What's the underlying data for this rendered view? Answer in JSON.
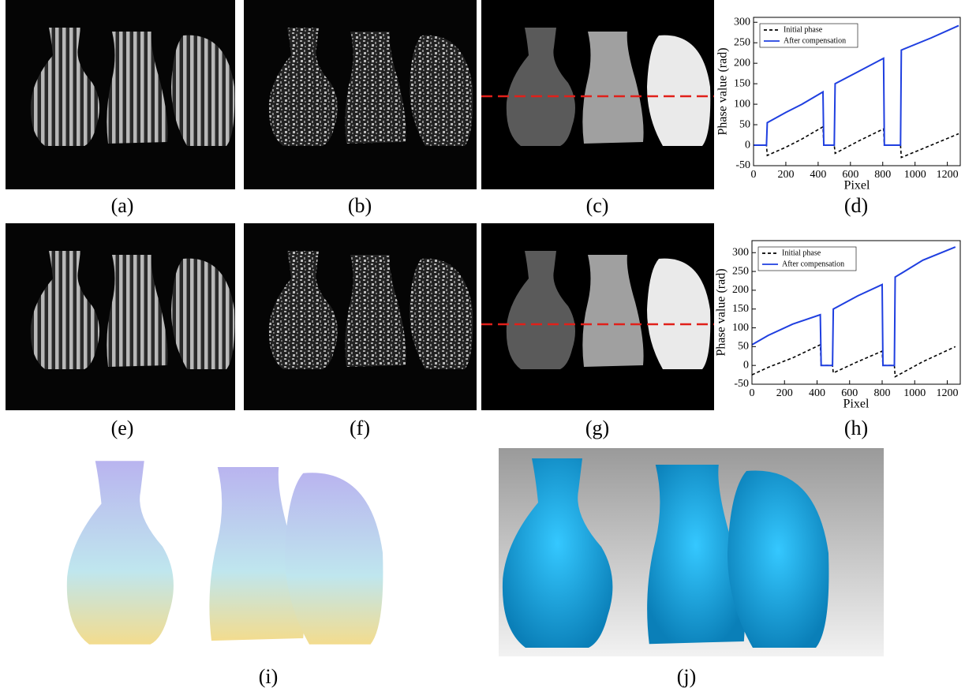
{
  "panel_labels": [
    "(a)",
    "(b)",
    "(c)",
    "(d)",
    "(e)",
    "(f)",
    "(g)",
    "(h)",
    "(i)",
    "(j)"
  ],
  "chart_data": [
    {
      "type": "line",
      "xlabel": "Pixel",
      "ylabel": "Phase value (rad)",
      "x": [
        0,
        80,
        85,
        200,
        300,
        430,
        435,
        500,
        505,
        650,
        805,
        810,
        910,
        915,
        1100,
        1270
      ],
      "series": [
        {
          "name": "Initial phase",
          "color": "#000000",
          "dash": true,
          "values": [
            0,
            0,
            -25,
            -5,
            15,
            45,
            0,
            0,
            -20,
            10,
            40,
            0,
            0,
            -30,
            0,
            28
          ]
        },
        {
          "name": "After compensation",
          "color": "#1f3fe0",
          "dash": false,
          "values": [
            0,
            0,
            55,
            80,
            100,
            130,
            0,
            0,
            150,
            180,
            212,
            0,
            0,
            232,
            262,
            292
          ]
        }
      ],
      "xlim": [
        0,
        1280
      ],
      "ylim": [
        -50,
        312
      ],
      "xticks": [
        0,
        200,
        400,
        600,
        800,
        1000,
        1200
      ],
      "yticks": [
        -50,
        0,
        50,
        100,
        150,
        200,
        250,
        300
      ],
      "legend": "upper left",
      "grid": false
    },
    {
      "type": "line",
      "xlabel": "Pixel",
      "ylabel": "Phase value (rad)",
      "x": [
        0,
        100,
        250,
        420,
        425,
        495,
        500,
        650,
        800,
        805,
        875,
        880,
        1050,
        1250
      ],
      "series": [
        {
          "name": "Initial phase",
          "color": "#000000",
          "dash": true,
          "values": [
            -25,
            -5,
            20,
            55,
            0,
            0,
            -20,
            10,
            38,
            0,
            0,
            -30,
            10,
            50
          ]
        },
        {
          "name": "After compensation",
          "color": "#1f3fe0",
          "dash": false,
          "values": [
            55,
            80,
            110,
            135,
            0,
            0,
            150,
            185,
            215,
            0,
            0,
            235,
            280,
            315
          ]
        }
      ],
      "xlim": [
        0,
        1280
      ],
      "ylim": [
        -50,
        332
      ],
      "xticks": [
        0,
        200,
        400,
        600,
        800,
        1000,
        1200
      ],
      "yticks": [
        -50,
        0,
        50,
        100,
        150,
        200,
        250,
        300
      ],
      "legend": "upper left",
      "grid": false
    }
  ]
}
